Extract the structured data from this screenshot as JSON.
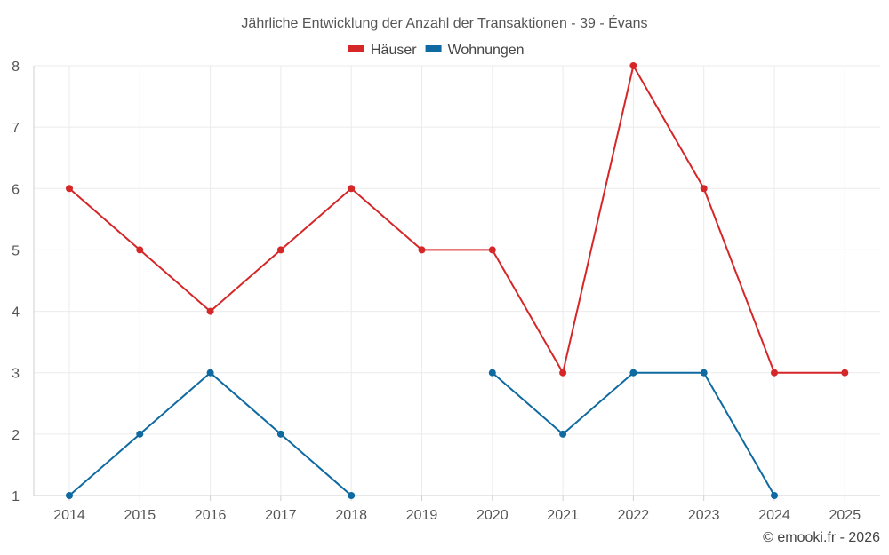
{
  "chart_data": {
    "type": "line",
    "title": "Jährliche Entwicklung der Anzahl der Transaktionen - 39 - Évans",
    "categories": [
      "2014",
      "2015",
      "2016",
      "2017",
      "2018",
      "2019",
      "2020",
      "2021",
      "2022",
      "2023",
      "2024",
      "2025"
    ],
    "ylim": [
      1,
      8
    ],
    "yticks": [
      1,
      2,
      3,
      4,
      5,
      6,
      7,
      8
    ],
    "grid": true,
    "legend_position": "top-center",
    "xlabel": "",
    "ylabel": "",
    "series": [
      {
        "name": "Häuser",
        "color": "#d62728",
        "values": [
          6,
          5,
          4,
          5,
          6,
          5,
          5,
          3,
          8,
          6,
          3,
          3
        ]
      },
      {
        "name": "Wohnungen",
        "color": "#0e6aa0",
        "values": [
          1,
          2,
          3,
          2,
          1,
          null,
          3,
          2,
          3,
          3,
          1,
          null
        ]
      }
    ]
  },
  "footer": {
    "credit": "© emooki.fr - 2026"
  }
}
